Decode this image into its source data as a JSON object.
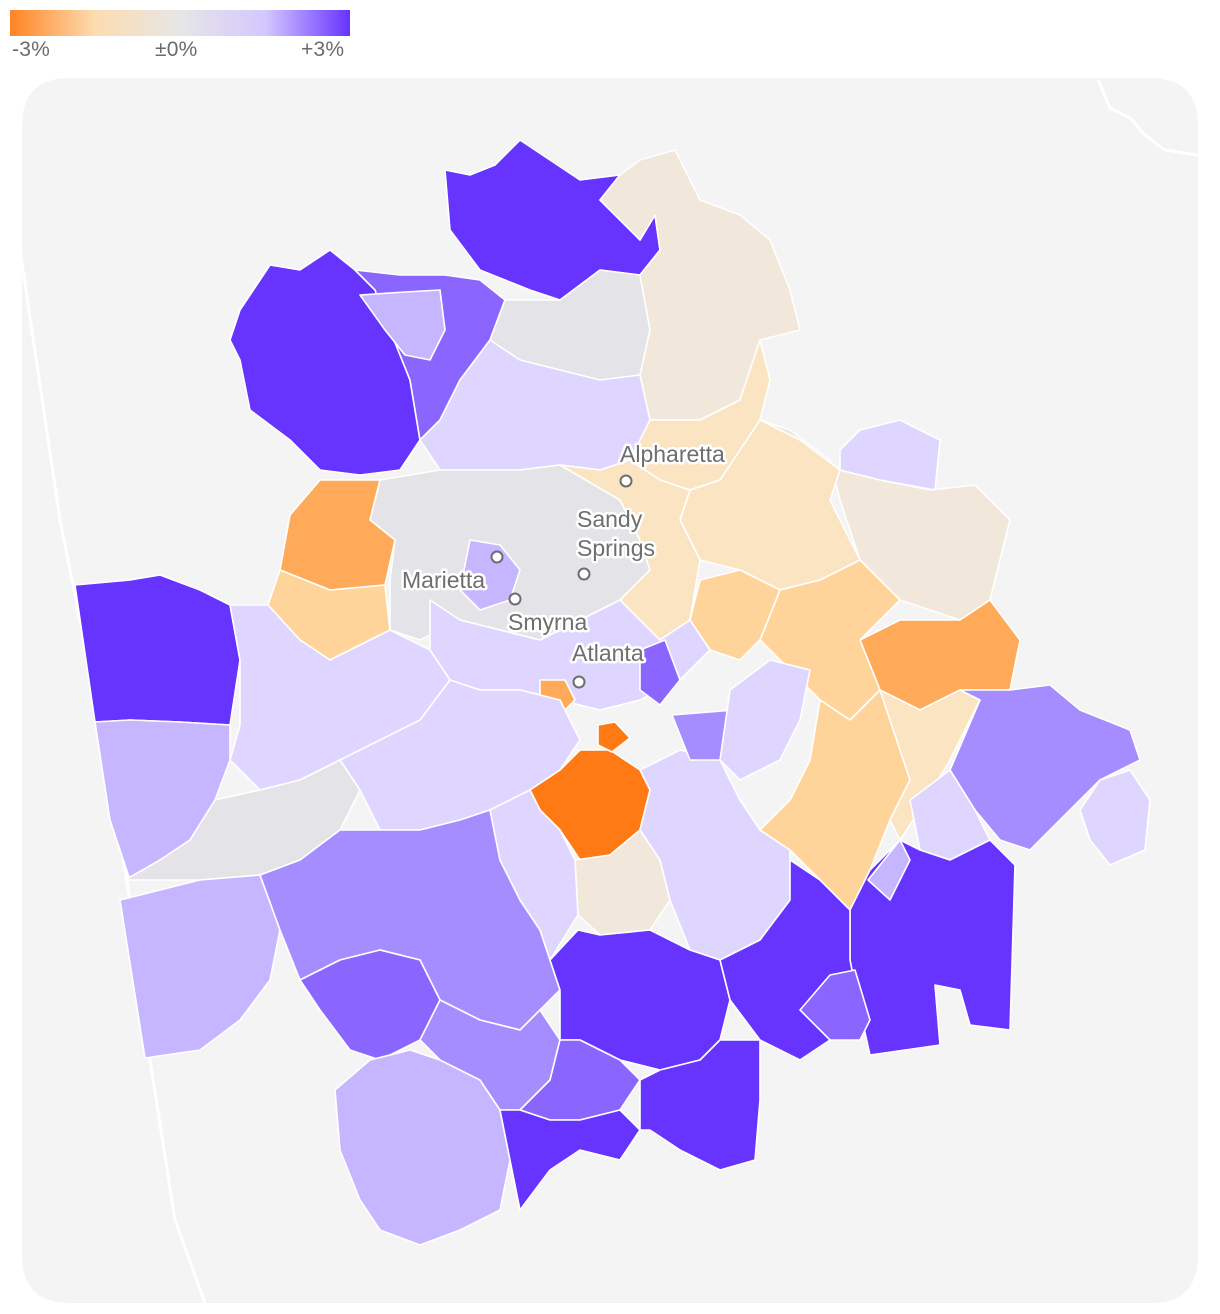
{
  "legend": {
    "min_label": "-3%",
    "mid_label": "±0%",
    "max_label": "+3%",
    "colors": {
      "low": "#ff8424",
      "low_mid": "#fcdcb0",
      "mid": "#e6e6e6",
      "high_mid": "#d4c8ff",
      "high": "#6633ff"
    }
  },
  "colors": {
    "background": "#f4f4f4",
    "border": "#ffffff",
    "very_negative": "#ff7a14",
    "negative": "#ffaa58",
    "slightly_negative": "#ffd49a",
    "near_zero_negative": "#fbe4c2",
    "near_zero": "#f1e7da",
    "neutral": "#e4e4e8",
    "slightly_positive": "#ded6ff",
    "positive": "#c6b6ff",
    "more_positive": "#a58cff",
    "strong_positive": "#8a66ff",
    "very_positive": "#6633ff"
  },
  "cities": [
    {
      "name": "Alpharetta",
      "line2": ""
    },
    {
      "name": "Sandy",
      "line2": "Springs"
    },
    {
      "name": "Marietta",
      "line2": ""
    },
    {
      "name": "Smyrna",
      "line2": ""
    },
    {
      "name": "Atlanta",
      "line2": ""
    }
  ]
}
